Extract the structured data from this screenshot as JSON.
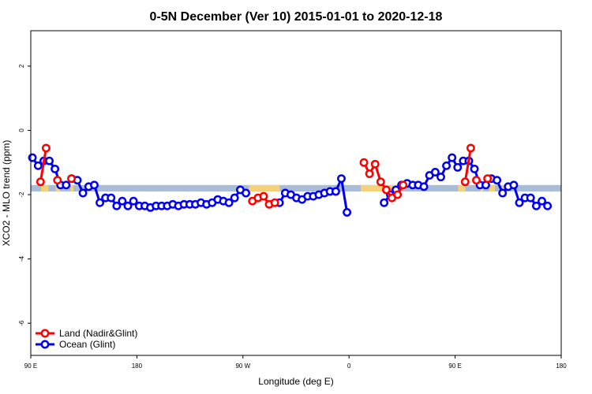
{
  "chart_data": {
    "type": "line",
    "title": "0-5N December (Ver 10)   2015-01-01 to 2020-12-18",
    "xlabel": "Longitude (deg E)",
    "ylabel": "XCO2 - MLO trend (ppm)",
    "xlim": [
      90,
      450
    ],
    "ylim": [
      -7,
      3.1
    ],
    "x_ticks": [
      {
        "value": 90,
        "label": "90 E"
      },
      {
        "value": 162,
        "label": "180"
      },
      {
        "value": 234,
        "label": "90 W"
      },
      {
        "value": 306,
        "label": "0"
      },
      {
        "value": 378,
        "label": "90 E"
      },
      {
        "value": 450,
        "label": "180"
      }
    ],
    "y_ticks": [
      {
        "value": 2,
        "label": "2"
      },
      {
        "value": 0,
        "label": "0"
      },
      {
        "value": -2,
        "label": "-2"
      },
      {
        "value": -4,
        "label": "-4"
      },
      {
        "value": -6,
        "label": "-6"
      }
    ],
    "grid": false,
    "legend_position": "bottom-left",
    "colors": {
      "land": "#ff0000",
      "ocean": "#0000ee",
      "band_ocean": "#a8bcd8",
      "band_land": "#f5d27a"
    },
    "reference_band": {
      "y_low": -1.9,
      "y_high": -1.7
    },
    "land_band_ranges": [
      [
        97,
        102
      ],
      [
        107,
        110
      ],
      [
        117,
        119
      ],
      [
        238,
        259
      ],
      [
        314,
        341
      ],
      [
        380,
        385
      ],
      [
        395,
        397
      ],
      [
        401,
        405
      ],
      [
        410,
        413
      ]
    ],
    "series": [
      {
        "name": "Land (Nadir&Glint)",
        "color": "#ff0000",
        "segments": [
          [
            [
              96.6,
              -1.6
            ],
            [
              100.4,
              -0.55
            ]
          ],
          [
            [
              108.1,
              -1.55
            ]
          ],
          [
            [
              117.6,
              -1.5
            ]
          ],
          [
            [
              240.4,
              -2.2
            ],
            [
              244.2,
              -2.1
            ],
            [
              248.0,
              -2.05
            ],
            [
              251.8,
              -2.3
            ],
            [
              255.6,
              -2.25
            ]
          ],
          [
            [
              316.1,
              -1.0
            ],
            [
              319.9,
              -1.35
            ],
            [
              323.7,
              -1.05
            ],
            [
              327.5,
              -1.6
            ],
            [
              331.3,
              -1.85
            ],
            [
              335.1,
              -2.1
            ],
            [
              338.9,
              -2.0
            ],
            [
              342.7,
              -1.7
            ]
          ],
          [
            [
              384.8,
              -1.6
            ],
            [
              388.6,
              -0.55
            ]
          ],
          [
            [
              392.4,
              -1.55
            ]
          ],
          [
            [
              400.0,
              -1.5
            ]
          ]
        ]
      },
      {
        "name": "Ocean (Glint)",
        "color": "#0000ee",
        "points": [
          [
            91.1,
            -0.85
          ],
          [
            95.0,
            -1.1
          ],
          [
            98.8,
            -0.95
          ],
          [
            102.6,
            -0.95
          ],
          [
            106.4,
            -1.2
          ],
          [
            110.2,
            -1.7
          ],
          [
            114.0,
            -1.7
          ],
          [
            117.8,
            -1.5
          ],
          [
            121.6,
            -1.55
          ],
          [
            125.4,
            -1.95
          ],
          [
            129.3,
            -1.75
          ],
          [
            133.1,
            -1.7
          ],
          [
            136.9,
            -2.25
          ],
          [
            140.7,
            -2.1
          ],
          [
            144.5,
            -2.1
          ],
          [
            148.3,
            -2.35
          ],
          [
            152.1,
            -2.2
          ],
          [
            155.9,
            -2.35
          ],
          [
            159.7,
            -2.2
          ],
          [
            163.6,
            -2.35
          ],
          [
            167.4,
            -2.35
          ],
          [
            171.2,
            -2.4
          ],
          [
            175.0,
            -2.35
          ],
          [
            178.8,
            -2.35
          ],
          [
            182.6,
            -2.35
          ],
          [
            186.4,
            -2.3
          ],
          [
            190.2,
            -2.35
          ],
          [
            194.0,
            -2.3
          ],
          [
            197.9,
            -2.3
          ],
          [
            201.7,
            -2.3
          ],
          [
            205.5,
            -2.25
          ],
          [
            209.3,
            -2.3
          ],
          [
            213.1,
            -2.25
          ],
          [
            216.9,
            -2.15
          ],
          [
            220.7,
            -2.2
          ],
          [
            224.5,
            -2.25
          ],
          [
            228.3,
            -2.1
          ],
          [
            232.2,
            -1.85
          ],
          [
            236.0,
            -1.95
          ],
          [
            258.8,
            -2.25
          ],
          [
            262.7,
            -1.95
          ],
          [
            266.5,
            -2.0
          ],
          [
            270.3,
            -2.1
          ],
          [
            274.1,
            -2.15
          ],
          [
            277.9,
            -2.05
          ],
          [
            281.7,
            -2.05
          ],
          [
            285.5,
            -2.0
          ],
          [
            289.3,
            -1.95
          ],
          [
            293.1,
            -1.9
          ],
          [
            297.0,
            -1.9
          ],
          [
            300.8,
            -1.5
          ],
          [
            304.6,
            -2.55
          ],
          [
            329.8,
            -2.25
          ],
          [
            334.0,
            -2.0
          ],
          [
            337.8,
            -1.85
          ],
          [
            341.6,
            -1.7
          ],
          [
            345.4,
            -1.65
          ],
          [
            349.2,
            -1.7
          ],
          [
            353.0,
            -1.7
          ],
          [
            356.8,
            -1.75
          ],
          [
            360.6,
            -1.4
          ],
          [
            364.5,
            -1.3
          ],
          [
            368.3,
            -1.45
          ],
          [
            372.1,
            -1.1
          ],
          [
            375.9,
            -0.85
          ],
          [
            379.7,
            -1.15
          ],
          [
            383.5,
            -0.95
          ],
          [
            387.3,
            -0.95
          ],
          [
            391.1,
            -1.2
          ],
          [
            394.9,
            -1.7
          ],
          [
            398.8,
            -1.7
          ],
          [
            402.6,
            -1.5
          ],
          [
            406.4,
            -1.55
          ],
          [
            410.2,
            -1.95
          ],
          [
            414.0,
            -1.75
          ],
          [
            417.8,
            -1.7
          ],
          [
            421.6,
            -2.25
          ],
          [
            425.4,
            -2.1
          ],
          [
            429.2,
            -2.1
          ],
          [
            433.1,
            -2.35
          ],
          [
            436.9,
            -2.2
          ],
          [
            440.7,
            -2.35
          ]
        ]
      }
    ]
  }
}
